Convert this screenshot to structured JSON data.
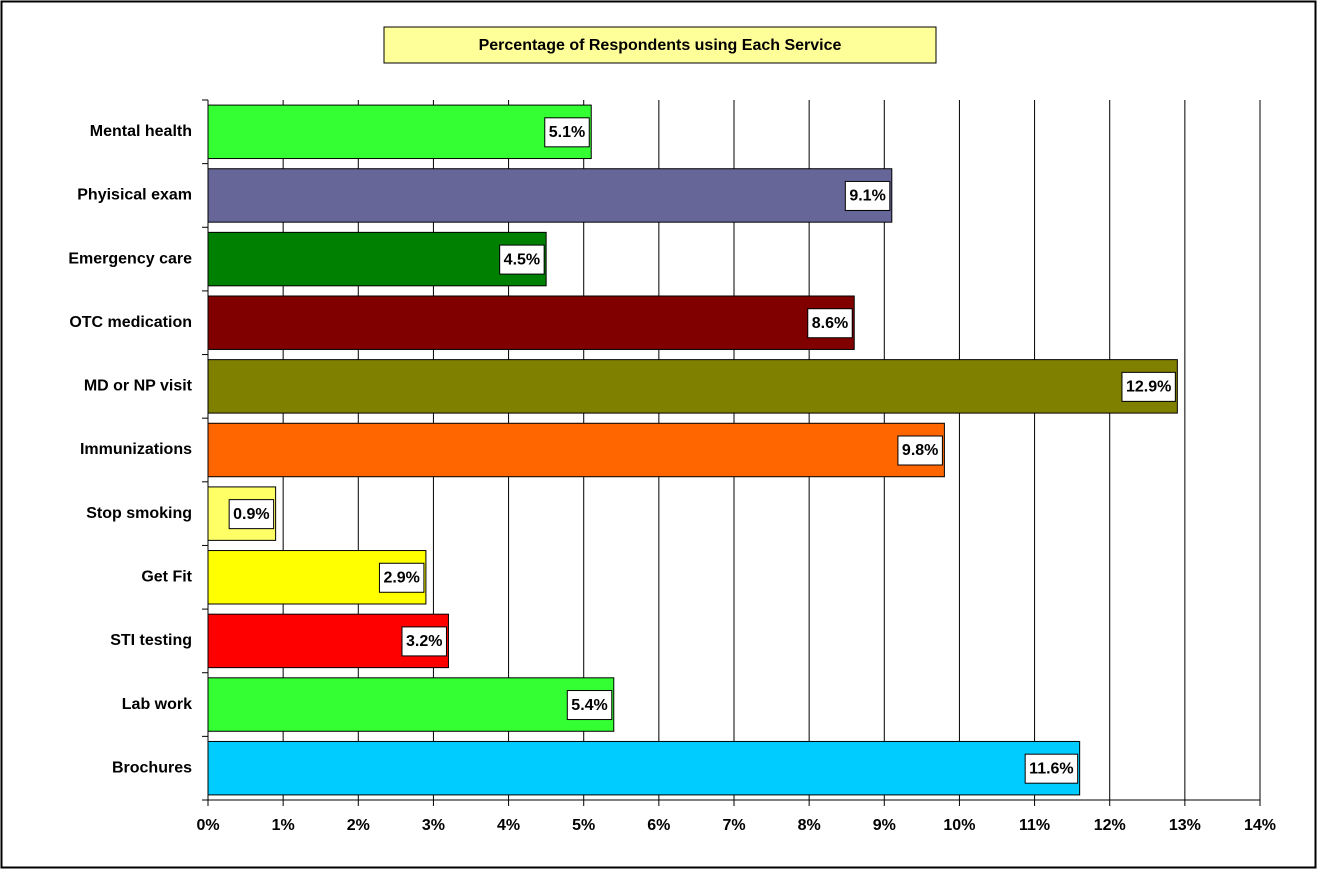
{
  "chart_data": {
    "type": "bar",
    "orientation": "horizontal",
    "title": "Percentage of Respondents using Each Service",
    "categories": [
      "Mental health",
      "Phyisical exam",
      "Emergency care",
      "OTC medication",
      "MD or NP visit",
      "Immunizations",
      "Stop smoking",
      "Get Fit",
      "STI testing",
      "Lab work",
      "Brochures"
    ],
    "values": [
      5.1,
      9.1,
      4.5,
      8.6,
      12.9,
      9.8,
      0.9,
      2.9,
      3.2,
      5.4,
      11.6
    ],
    "value_labels": [
      "5.1%",
      "9.1%",
      "4.5%",
      "8.6%",
      "12.9%",
      "9.8%",
      "0.9%",
      "2.9%",
      "3.2%",
      "5.4%",
      "11.6%"
    ],
    "colors": [
      "#33ff33",
      "#666699",
      "#008000",
      "#800000",
      "#808000",
      "#ff6600",
      "#ffff66",
      "#ffff00",
      "#ff0000",
      "#33ff33",
      "#00ccff"
    ],
    "xlim": [
      0,
      14
    ],
    "xticks": [
      {
        "value": 0,
        "label": "0%"
      },
      {
        "value": 1,
        "label": "1%"
      },
      {
        "value": 2,
        "label": "2%"
      },
      {
        "value": 3,
        "label": "3%"
      },
      {
        "value": 4,
        "label": "4%"
      },
      {
        "value": 5,
        "label": "5%"
      },
      {
        "value": 6,
        "label": "6%"
      },
      {
        "value": 7,
        "label": "7%"
      },
      {
        "value": 8,
        "label": "8%"
      },
      {
        "value": 9,
        "label": "9%"
      },
      {
        "value": 10,
        "label": "10%"
      },
      {
        "value": 11,
        "label": "11%"
      },
      {
        "value": 12,
        "label": "12%"
      },
      {
        "value": 13,
        "label": "13%"
      },
      {
        "value": 14,
        "label": "14%"
      }
    ],
    "grid": true
  }
}
